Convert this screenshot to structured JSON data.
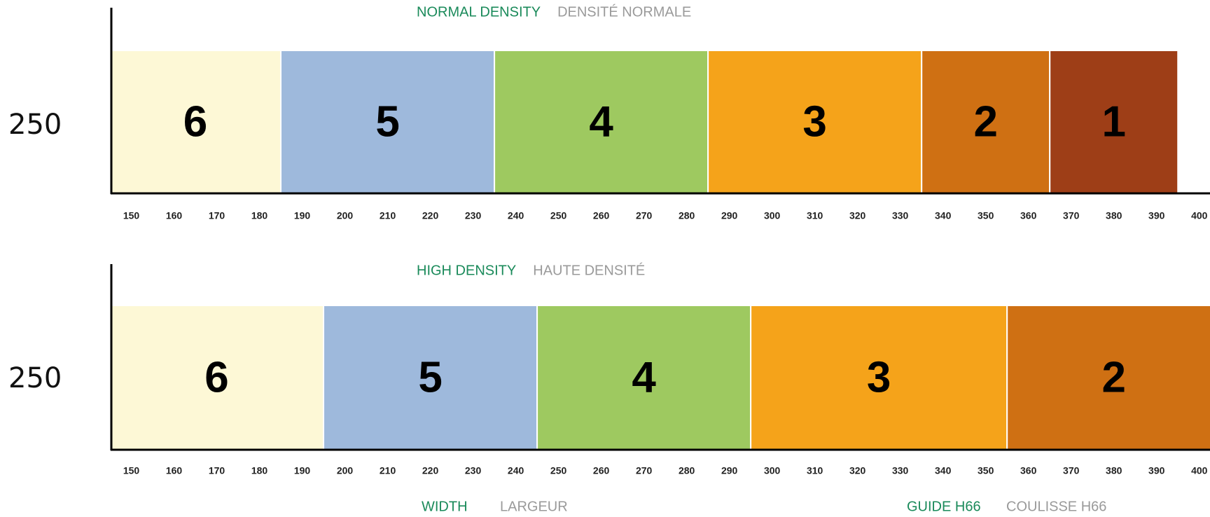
{
  "chart_data": [
    {
      "type": "range-bar",
      "title": "NORMAL DENSITY",
      "title_fr": "DENSITÉ NORMALE",
      "row_label": "250",
      "xlim": [
        145,
        402.5
      ],
      "xticks": [
        150,
        160,
        170,
        180,
        190,
        200,
        210,
        220,
        230,
        240,
        250,
        260,
        270,
        280,
        290,
        300,
        310,
        320,
        330,
        340,
        350,
        360,
        370,
        380,
        390,
        400
      ],
      "segments": [
        {
          "label": "6",
          "color": "#fdf8d6",
          "start": 145,
          "end": 185
        },
        {
          "label": "5",
          "color": "#9eb9dc",
          "start": 185,
          "end": 235
        },
        {
          "label": "4",
          "color": "#9ec960",
          "start": 235,
          "end": 285
        },
        {
          "label": "3",
          "color": "#f5a31a",
          "start": 285,
          "end": 335
        },
        {
          "label": "2",
          "color": "#cf7013",
          "start": 335,
          "end": 365
        },
        {
          "label": "1",
          "color": "#9e3e17",
          "start": 365,
          "end": 395
        }
      ]
    },
    {
      "type": "range-bar",
      "title": "HIGH DENSITY",
      "title_fr": "HAUTE DENSITÉ",
      "row_label": "250",
      "xlim": [
        145,
        402.5
      ],
      "xticks": [
        150,
        160,
        170,
        180,
        190,
        200,
        210,
        220,
        230,
        240,
        250,
        260,
        270,
        280,
        290,
        300,
        310,
        320,
        330,
        340,
        350,
        360,
        370,
        380,
        390,
        400
      ],
      "segments": [
        {
          "label": "6",
          "color": "#fdf8d6",
          "start": 145,
          "end": 195
        },
        {
          "label": "5",
          "color": "#9eb9dc",
          "start": 195,
          "end": 245
        },
        {
          "label": "4",
          "color": "#9ec960",
          "start": 245,
          "end": 295
        },
        {
          "label": "3",
          "color": "#f5a31a",
          "start": 295,
          "end": 355
        },
        {
          "label": "2",
          "color": "#cf7013",
          "start": 355,
          "end": 405
        }
      ]
    }
  ],
  "footer": {
    "xlabel": "WIDTH",
    "xlabel_fr": "LARGEUR",
    "guide": "GUIDE H66",
    "guide_fr": "COULISSE H66"
  }
}
